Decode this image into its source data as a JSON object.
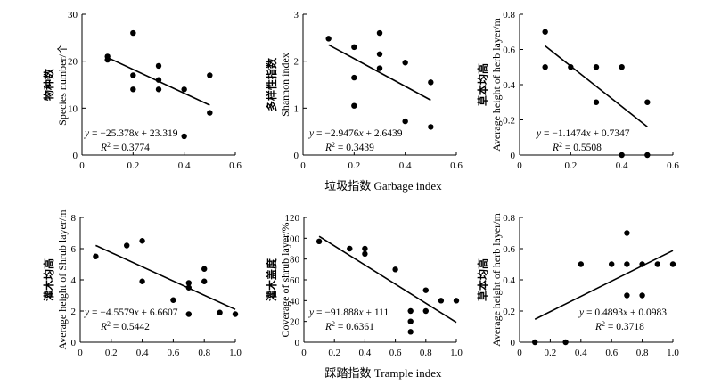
{
  "figure": {
    "row1_xlabel": "垃圾指数 Garbage index",
    "row2_xlabel": "踩踏指数 Trample index"
  },
  "chart_data": [
    {
      "type": "scatter",
      "title": "",
      "xlabel": "",
      "ylabel_cn": "物种数",
      "ylabel_en": "Species number/个",
      "xlim": [
        0,
        0.6
      ],
      "ylim": [
        0,
        30
      ],
      "xticks": [
        "0",
        "0.2",
        "0.4",
        "0.6"
      ],
      "yticks": [
        "0",
        "10",
        "20",
        "30"
      ],
      "x": [
        0.1,
        0.1,
        0.2,
        0.2,
        0.2,
        0.3,
        0.3,
        0.3,
        0.4,
        0.4,
        0.5,
        0.5
      ],
      "y": [
        21,
        20.3,
        26,
        17,
        14,
        19,
        16,
        14,
        14,
        4,
        17,
        9
      ],
      "fit": {
        "slope": -25.378,
        "intercept": 23.319,
        "x_range": [
          0.1,
          0.5
        ]
      },
      "equation": "y = −25.378x + 23.319",
      "r2": "R² = 0.3774"
    },
    {
      "type": "scatter",
      "title": "",
      "xlabel": "",
      "ylabel_cn": "多样性指数",
      "ylabel_en": "Shannon index",
      "xlim": [
        0,
        0.6
      ],
      "ylim": [
        0,
        3
      ],
      "xticks": [
        "0",
        "0.2",
        "0.4",
        "0.6"
      ],
      "yticks": [
        "0",
        "1",
        "2",
        "3"
      ],
      "x": [
        0.1,
        0.2,
        0.2,
        0.2,
        0.3,
        0.3,
        0.3,
        0.4,
        0.4,
        0.5,
        0.5
      ],
      "y": [
        2.48,
        2.3,
        1.65,
        1.05,
        2.6,
        2.15,
        1.85,
        1.97,
        0.72,
        1.55,
        0.6
      ],
      "fit": {
        "slope": -2.9476,
        "intercept": 2.6439,
        "x_range": [
          0.1,
          0.5
        ]
      },
      "equation": "y = −2.9476x + 2.6439",
      "r2": "R² = 0.3439"
    },
    {
      "type": "scatter",
      "title": "",
      "xlabel": "",
      "ylabel_cn": "草本均高",
      "ylabel_en": "Average height of herb layer/m",
      "xlim": [
        0,
        0.6
      ],
      "ylim": [
        0,
        0.8
      ],
      "xticks": [
        "0",
        "0.2",
        "0.4",
        "0.6"
      ],
      "yticks": [
        "0",
        "0.2",
        "0.4",
        "0.6",
        "0.8"
      ],
      "x": [
        0.1,
        0.1,
        0.2,
        0.3,
        0.3,
        0.4,
        0.4,
        0.5,
        0.5
      ],
      "y": [
        0.7,
        0.5,
        0.5,
        0.5,
        0.3,
        0.5,
        0.0,
        0.3,
        0.0
      ],
      "fit": {
        "slope": -1.1474,
        "intercept": 0.7347,
        "x_range": [
          0.1,
          0.5
        ]
      },
      "equation": "y = −1.1474x + 0.7347",
      "r2": "R² = 0.5508"
    },
    {
      "type": "scatter",
      "title": "",
      "xlabel": "",
      "ylabel_cn": "灌木均高",
      "ylabel_en": "Average height of Shrub layer/m",
      "xlim": [
        0,
        1.0
      ],
      "ylim": [
        0,
        8
      ],
      "xticks": [
        "0",
        "0.2",
        "0.4",
        "0.6",
        "0.8",
        "1.0"
      ],
      "yticks": [
        "0",
        "2",
        "4",
        "6",
        "8"
      ],
      "x": [
        0.1,
        0.3,
        0.4,
        0.4,
        0.6,
        0.7,
        0.7,
        0.7,
        0.8,
        0.8,
        0.9,
        1.0
      ],
      "y": [
        5.5,
        6.2,
        6.5,
        3.9,
        2.7,
        3.8,
        3.5,
        1.8,
        4.7,
        3.9,
        1.9,
        1.8
      ],
      "fit": {
        "slope": -4.5579,
        "intercept": 6.6607,
        "x_range": [
          0.1,
          1.0
        ]
      },
      "equation": "y = −4.5579x + 6.6607",
      "r2": "R² = 0.5442"
    },
    {
      "type": "scatter",
      "title": "",
      "xlabel": "",
      "ylabel_cn": "灌木盖度",
      "ylabel_en": "Coverage of shrub layer/%",
      "xlim": [
        0,
        1.0
      ],
      "ylim": [
        0,
        120
      ],
      "xticks": [
        "0",
        "0.2",
        "0.4",
        "0.6",
        "0.8",
        "1.0"
      ],
      "yticks": [
        "0",
        "20",
        "40",
        "60",
        "80",
        "100",
        "120"
      ],
      "x": [
        0.1,
        0.3,
        0.4,
        0.4,
        0.6,
        0.7,
        0.7,
        0.7,
        0.8,
        0.8,
        0.9,
        1.0
      ],
      "y": [
        97,
        90,
        90,
        85,
        70,
        30,
        20,
        10,
        50,
        30,
        40,
        40
      ],
      "fit": {
        "slope": -91.888,
        "intercept": 111,
        "x_range": [
          0.1,
          1.0
        ]
      },
      "equation": "y = −91.888x + 111",
      "r2": "R² = 0.6361"
    },
    {
      "type": "scatter",
      "title": "",
      "xlabel": "",
      "ylabel_cn": "草本均高",
      "ylabel_en": "Average height of herb layer/m",
      "xlim": [
        0,
        1.0
      ],
      "ylim": [
        0,
        0.8
      ],
      "xticks": [
        "0",
        "0.2",
        "0.4",
        "0.6",
        "0.8",
        "1.0"
      ],
      "yticks": [
        "0",
        "0.2",
        "0.4",
        "0.6",
        "0.8"
      ],
      "x": [
        0.1,
        0.3,
        0.4,
        0.6,
        0.7,
        0.7,
        0.7,
        0.8,
        0.8,
        0.9,
        1.0
      ],
      "y": [
        0.0,
        0.0,
        0.5,
        0.5,
        0.7,
        0.5,
        0.3,
        0.5,
        0.3,
        0.5,
        0.5
      ],
      "fit": {
        "slope": 0.4893,
        "intercept": 0.0983,
        "x_range": [
          0.1,
          1.0
        ]
      },
      "equation": "y = 0.4893x + 0.0983",
      "r2": "R² = 0.3718"
    }
  ]
}
